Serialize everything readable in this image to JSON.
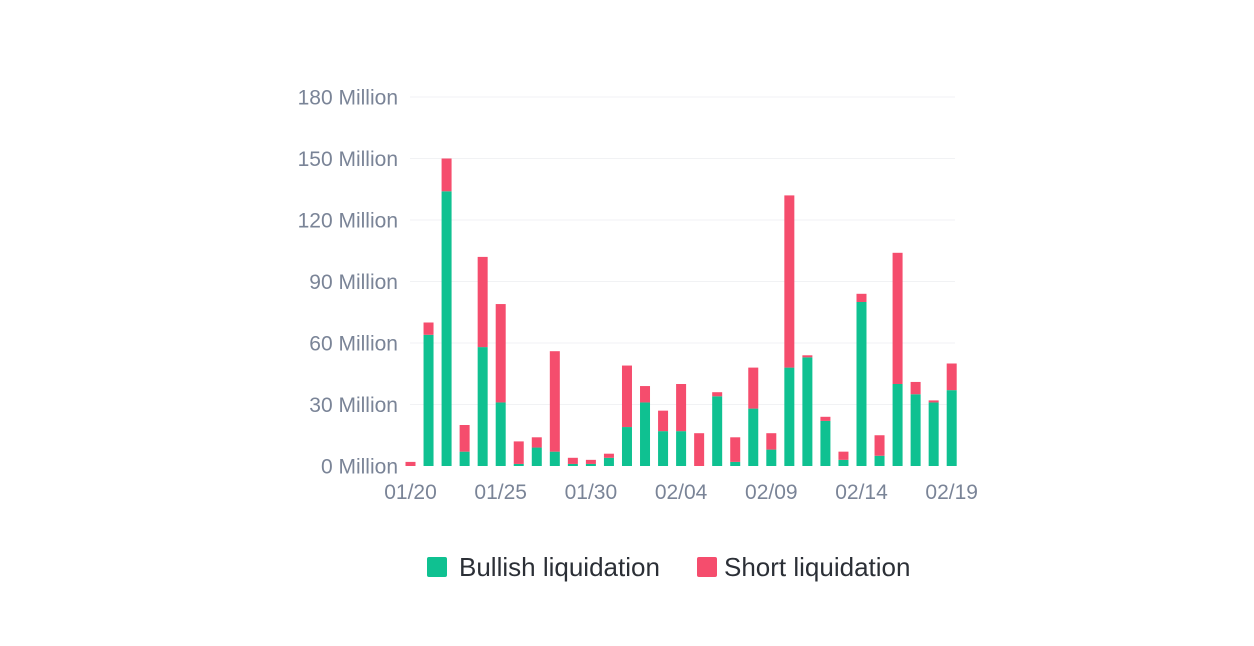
{
  "chart_data": {
    "type": "bar",
    "stacked": true,
    "title": "",
    "xlabel": "",
    "ylabel": "",
    "ylim": [
      0,
      180
    ],
    "y_ticks": [
      0,
      30,
      60,
      90,
      120,
      150,
      180
    ],
    "y_tick_labels": [
      "0 Million",
      "30 Million",
      "60 Million",
      "90 Million",
      "120 Million",
      "150 Million",
      "180 Million"
    ],
    "x_tick_labels": [
      "01/20",
      "01/25",
      "01/30",
      "02/04",
      "02/09",
      "02/14",
      "02/19"
    ],
    "x_tick_every": 5,
    "grid": true,
    "legend_position": "bottom-center",
    "series": [
      {
        "name": "Bullish liquidation",
        "color": "#0fc191",
        "values": [
          0,
          64,
          134,
          7,
          58,
          31,
          1,
          9,
          7,
          1,
          1,
          4,
          19,
          31,
          17,
          17,
          0,
          34,
          2,
          28,
          8,
          48,
          53,
          22,
          3,
          80,
          5,
          40,
          35,
          31,
          37
        ]
      },
      {
        "name": "Short liquidation",
        "color": "#f54d6d",
        "values": [
          2,
          6,
          16,
          13,
          44,
          48,
          11,
          5,
          49,
          3,
          2,
          2,
          30,
          8,
          10,
          23,
          16,
          2,
          12,
          20,
          8,
          84,
          1,
          2,
          4,
          4,
          10,
          64,
          6,
          1,
          13
        ]
      }
    ]
  }
}
